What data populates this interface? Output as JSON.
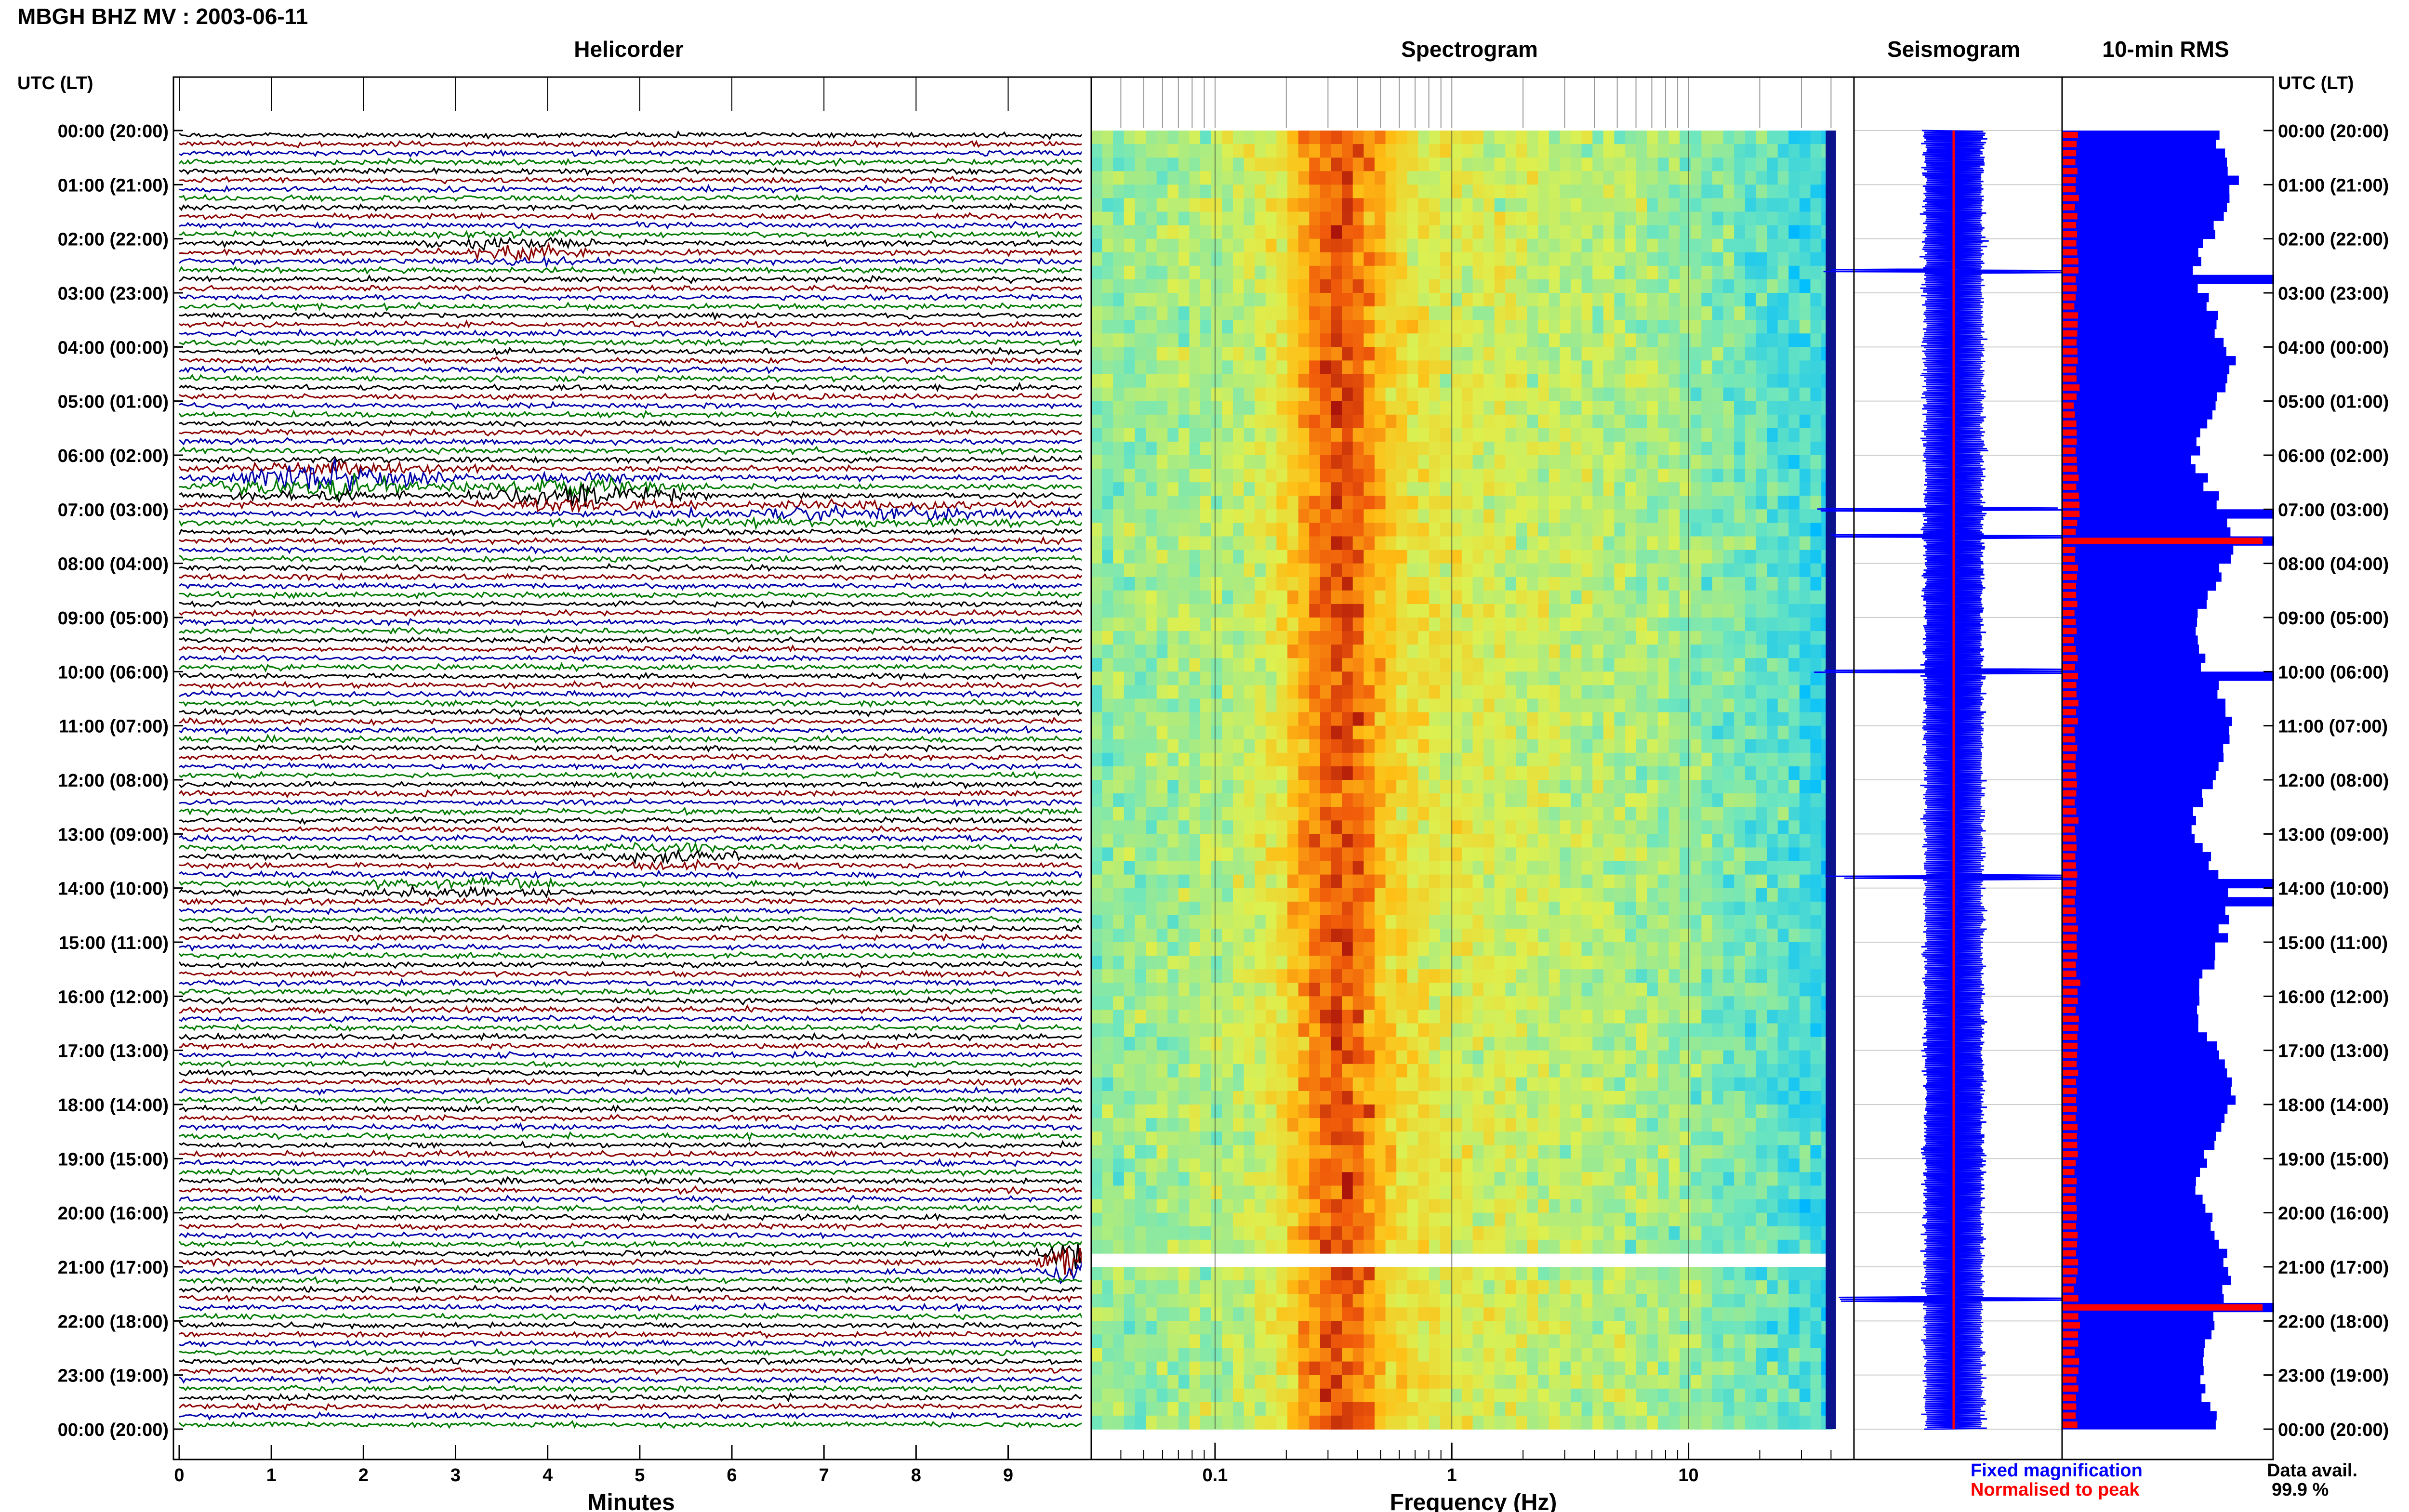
{
  "header": {
    "title": "MBGH BHZ MV : 2003-06-11",
    "left_axis_label": "UTC (LT)",
    "right_axis_label": "UTC (LT)"
  },
  "panels": {
    "helicorder_title": "Helicorder",
    "spectrogram_title": "Spectrogram",
    "seismogram_title": "Seismogram",
    "rms_title": "10-min RMS"
  },
  "legend": {
    "fixed": "Fixed magnification",
    "normalised": "Normalised to peak",
    "data_avail_label": "Data avail.",
    "data_avail_value": "99.9 %"
  },
  "colors": {
    "helicorder_traces": [
      "#000000",
      "#8b0000",
      "#0000aa",
      "#007a00"
    ],
    "rms_fixed": "#0000ff",
    "rms_normalised": "#ff0000",
    "seismogram_trace": "#0000ff",
    "seismogram_peak": "#ff0000"
  },
  "chart_data": [
    {
      "type": "line",
      "name_panel": "Helicorder",
      "xlabel": "Minutes",
      "xlim": [
        0,
        10
      ],
      "x_ticks": [
        "0",
        "1",
        "2",
        "3",
        "4",
        "5",
        "6",
        "7",
        "8",
        "9"
      ],
      "y_tick_labels": [
        "00:00 (20:00)",
        "01:00 (21:00)",
        "02:00 (22:00)",
        "03:00 (23:00)",
        "04:00 (00:00)",
        "05:00 (01:00)",
        "06:00 (02:00)",
        "07:00 (03:00)",
        "08:00 (04:00)",
        "09:00 (05:00)",
        "10:00 (06:00)",
        "11:00 (07:00)",
        "12:00 (08:00)",
        "13:00 (09:00)",
        "14:00 (10:00)",
        "15:00 (11:00)",
        "16:00 (12:00)",
        "17:00 (13:00)",
        "18:00 (14:00)",
        "19:00 (15:00)",
        "20:00 (16:00)",
        "21:00 (17:00)",
        "22:00 (18:00)",
        "23:00 (19:00)",
        "00:00 (20:00)"
      ],
      "lines": 144,
      "events": [
        {
          "hour": 2.1,
          "minute": 3.7,
          "amp": 1.6,
          "width": 0.9
        },
        {
          "hour": 6.4,
          "minute": 1.7,
          "amp": 3.2,
          "width": 1.5
        },
        {
          "hour": 6.6,
          "minute": 4.4,
          "amp": 2.6,
          "width": 1.2
        },
        {
          "hour": 7.0,
          "minute": 7.4,
          "amp": 1.0,
          "width": 3.0
        },
        {
          "hour": 13.3,
          "minute": 5.4,
          "amp": 1.1,
          "width": 0.8
        },
        {
          "hour": 13.9,
          "minute": 3.0,
          "amp": 0.8,
          "width": 1.5
        },
        {
          "hour": 20.8,
          "minute": 9.7,
          "amp": 5.5,
          "width": 0.35
        }
      ]
    },
    {
      "type": "heatmap",
      "name_panel": "Spectrogram",
      "xlabel": "Frequency (Hz)",
      "x_scale": "log",
      "xlim": [
        0.03,
        50
      ],
      "x_tick_labels": [
        "0.1",
        "1",
        "10"
      ],
      "x_tick_values": [
        0.1,
        1,
        10
      ],
      "y_range_hours": [
        0,
        24
      ],
      "peak_band_hz": [
        0.2,
        0.5
      ],
      "gaps_hours": [
        20.6,
        21.0
      ]
    },
    {
      "type": "line",
      "name_panel": "Seismogram",
      "y_range_hours": [
        0,
        24
      ],
      "spikes_hours": [
        2.6,
        7.0,
        7.5,
        10.0,
        13.8,
        21.6
      ]
    },
    {
      "type": "bar",
      "name_panel": "10-min RMS",
      "y_range_hours": [
        0,
        24
      ],
      "bins": 144,
      "series": [
        {
          "name": "Fixed magnification",
          "relative_level": 0.72,
          "spikes_hours": [
            2.6,
            7.0,
            7.5,
            10.0,
            13.8,
            14.2,
            21.6
          ]
        },
        {
          "name": "Normalised to peak",
          "relative_level": 0.07,
          "spikes_hours": [
            7.5,
            21.6
          ]
        }
      ],
      "data_availability_percent": 99.9
    }
  ]
}
